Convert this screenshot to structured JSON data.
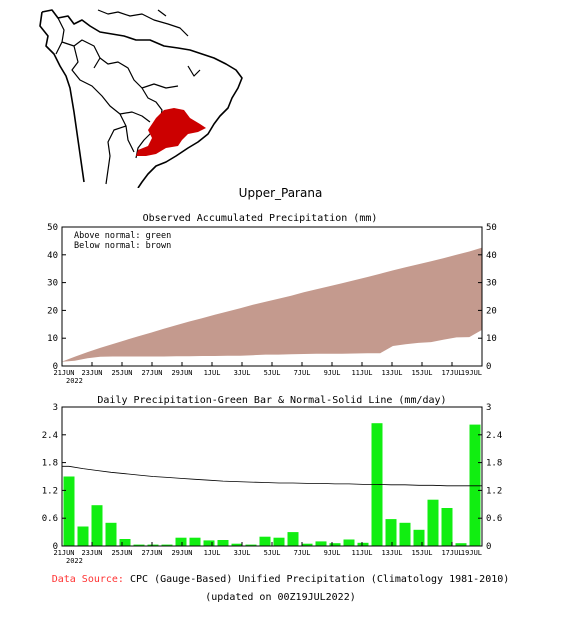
{
  "region": {
    "name": "Upper_Parana"
  },
  "colors": {
    "accum_fill": "#c49a8e",
    "daily_bar": "#11ee11",
    "region": "#cc0000",
    "source_label": "#ff3333"
  },
  "chart_data": [
    {
      "type": "area",
      "title": "Observed Accumulated Precipitation (mm)",
      "legend_lines": [
        "Above normal: green",
        "Below normal: brown"
      ],
      "x_labels": [
        "21JUN",
        "23JUN",
        "25JUN",
        "27JUN",
        "29JUN",
        "1JUL",
        "3JUL",
        "5JUL",
        "7JUL",
        "9JUL",
        "11JUL",
        "13JUL",
        "15JUL",
        "17JUL",
        "19JUL"
      ],
      "x_sub_label": "2022",
      "ylim": [
        0,
        50
      ],
      "yticks": [
        0,
        10,
        20,
        30,
        40,
        50
      ],
      "series": [
        {
          "values": [
            1.5,
            1.9,
            2.8,
            3.3,
            3.4,
            3.4,
            3.4,
            3.4,
            3.4,
            3.5,
            3.5,
            3.6,
            3.6,
            3.7,
            3.7,
            3.9,
            4.1,
            4.1,
            4.2,
            4.3,
            4.4,
            4.4,
            4.4,
            4.5,
            4.6,
            4.6,
            7.2,
            7.8,
            8.3,
            8.6,
            9.5,
            10.3,
            10.4,
            13.0
          ]
        },
        {
          "values": [
            1.6,
            3.3,
            5.0,
            6.5,
            7.9,
            9.3,
            10.7,
            12.0,
            13.4,
            14.7,
            16.0,
            17.2,
            18.4,
            19.6,
            20.8,
            22.0,
            23.1,
            24.2,
            25.3,
            26.5,
            27.6,
            28.7,
            29.8,
            30.9,
            32.0,
            33.2,
            34.4,
            35.5,
            36.6,
            37.7,
            38.8,
            40.0,
            41.2,
            42.6
          ]
        }
      ]
    },
    {
      "type": "bar",
      "title": "Daily Precipitation-Green Bar & Normal-Solid Line (mm/day)",
      "x_labels": [
        "21JUN",
        "23JUN",
        "25JUN",
        "27JUN",
        "29JUN",
        "1JUL",
        "3JUL",
        "5JUL",
        "7JUL",
        "9JUL",
        "11JUL",
        "13JUL",
        "15JUL",
        "17JUL",
        "19JUL"
      ],
      "x_sub_label": "2022",
      "ylim": [
        0,
        3
      ],
      "yticks": [
        "0",
        "0.6",
        "1.2",
        "1.8",
        "2.4",
        "3"
      ],
      "series": [
        {
          "values": [
            1.5,
            0.42,
            0.88,
            0.5,
            0.15,
            0.03,
            0.03,
            0.03,
            0.18,
            0.18,
            0.12,
            0.13,
            0.05,
            0.03,
            0.2,
            0.18,
            0.3,
            0.05,
            0.1,
            0.06,
            0.14,
            0.07,
            2.65,
            0.58,
            0.5,
            0.35,
            1.0,
            0.82,
            0.06,
            2.62
          ]
        },
        {
          "values": [
            1.72,
            1.67,
            1.63,
            1.59,
            1.56,
            1.53,
            1.5,
            1.48,
            1.46,
            1.44,
            1.42,
            1.4,
            1.39,
            1.38,
            1.37,
            1.36,
            1.36,
            1.35,
            1.35,
            1.34,
            1.34,
            1.33,
            1.33,
            1.32,
            1.32,
            1.31,
            1.31,
            1.3,
            1.3,
            1.3
          ]
        }
      ]
    }
  ],
  "footer": {
    "source_label": "Data Source:",
    "source_text": "CPC (Gauge-Based) Unified Precipitation (Climatology 1981-2010)",
    "updated": "(updated on 00Z19JUL2022)"
  }
}
